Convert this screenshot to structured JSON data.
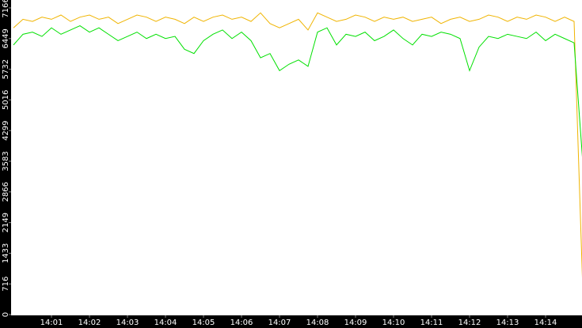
{
  "chart_data": {
    "type": "line",
    "x": [
      0,
      0.25,
      0.5,
      0.75,
      1,
      1.25,
      1.5,
      1.75,
      2,
      2.25,
      2.5,
      2.75,
      3,
      3.25,
      3.5,
      3.75,
      4,
      4.25,
      4.5,
      4.75,
      5,
      5.25,
      5.5,
      5.75,
      6,
      6.25,
      6.5,
      6.75,
      7,
      7.25,
      7.5,
      7.75,
      8,
      8.25,
      8.5,
      8.75,
      9,
      9.25,
      9.5,
      9.75,
      10,
      10.25,
      10.5,
      10.75,
      11,
      11.25,
      11.5,
      11.75,
      12,
      12.25,
      12.5,
      12.75,
      13,
      13.25,
      13.5,
      13.75,
      14,
      14.25,
      14.5,
      14.75,
      15
    ],
    "series": [
      {
        "color": "#f0b400",
        "values": [
          6700,
          6900,
          6850,
          6950,
          6900,
          7000,
          6850,
          6950,
          7000,
          6900,
          6950,
          6800,
          6900,
          7000,
          6950,
          6850,
          6950,
          6900,
          6800,
          6950,
          6850,
          6950,
          7000,
          6900,
          6950,
          6850,
          7050,
          6800,
          6700,
          6800,
          6900,
          6650,
          7050,
          6950,
          6850,
          6900,
          7000,
          6950,
          6850,
          6950,
          6900,
          6950,
          6850,
          6900,
          6950,
          6800,
          6900,
          6950,
          6850,
          6900,
          7000,
          6950,
          6850,
          6950,
          6900,
          7000,
          6950,
          6850,
          6950,
          6850,
          0
        ]
      },
      {
        "color": "#00e000",
        "values": [
          6300,
          6550,
          6600,
          6500,
          6700,
          6550,
          6650,
          6750,
          6600,
          6700,
          6550,
          6400,
          6500,
          6600,
          6450,
          6550,
          6450,
          6500,
          6200,
          6100,
          6400,
          6550,
          6650,
          6450,
          6600,
          6400,
          6000,
          6100,
          5700,
          5850,
          5950,
          5800,
          6600,
          6700,
          6300,
          6550,
          6500,
          6600,
          6400,
          6500,
          6650,
          6450,
          6300,
          6550,
          6500,
          6600,
          6550,
          6450,
          5700,
          6250,
          6500,
          6450,
          6550,
          6500,
          6450,
          6600,
          6400,
          6550,
          6450,
          6350,
          3300
        ]
      }
    ],
    "xlim": [
      0,
      15
    ],
    "xticks": [
      {
        "value": 1,
        "label": "14:01"
      },
      {
        "value": 2,
        "label": "14:02"
      },
      {
        "value": 3,
        "label": "14:03"
      },
      {
        "value": 4,
        "label": "14:04"
      },
      {
        "value": 5,
        "label": "14:05"
      },
      {
        "value": 6,
        "label": "14:06"
      },
      {
        "value": 7,
        "label": "14:07"
      },
      {
        "value": 8,
        "label": "14:08"
      },
      {
        "value": 9,
        "label": "14:09"
      },
      {
        "value": 10,
        "label": "14:10"
      },
      {
        "value": 11,
        "label": "14:11"
      },
      {
        "value": 12,
        "label": "14:12"
      },
      {
        "value": 13,
        "label": "14:13"
      },
      {
        "value": 14,
        "label": "14:14"
      }
    ],
    "ylim": [
      0,
      7166
    ],
    "yticks": [
      0,
      716,
      1433,
      2149,
      2866,
      3583,
      4299,
      5016,
      5732,
      6449,
      7166
    ]
  }
}
